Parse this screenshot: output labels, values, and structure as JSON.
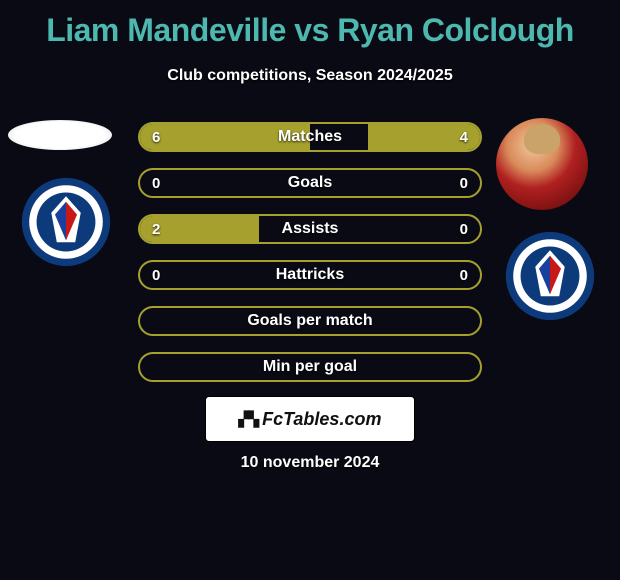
{
  "colors": {
    "background": "#0a0a14",
    "accent_teal": "#4db8b0",
    "bar_border": "#a6a12e",
    "bar_fill": "#a6a12e",
    "text": "#ffffff",
    "crest_outer": "#0d3a7a",
    "crest_white": "#ffffff",
    "crest_red": "#c81818",
    "crest_blue": "#1a3f9c"
  },
  "title": {
    "player1": "Liam Mandeville",
    "vs": "vs",
    "player2": "Ryan Colclough",
    "fontsize": 32
  },
  "subtitle": "Club competitions, Season 2024/2025",
  "bars": [
    {
      "label": "Matches",
      "left_val": "6",
      "right_val": "4",
      "left_pct": 50,
      "right_pct": 33
    },
    {
      "label": "Goals",
      "left_val": "0",
      "right_val": "0",
      "left_pct": 0,
      "right_pct": 0
    },
    {
      "label": "Assists",
      "left_val": "2",
      "right_val": "0",
      "left_pct": 35,
      "right_pct": 0
    },
    {
      "label": "Hattricks",
      "left_val": "0",
      "right_val": "0",
      "left_pct": 0,
      "right_pct": 0
    },
    {
      "label": "Goals per match",
      "left_val": "",
      "right_val": "",
      "left_pct": 0,
      "right_pct": 0
    },
    {
      "label": "Min per goal",
      "left_val": "",
      "right_val": "",
      "left_pct": 0,
      "right_pct": 0
    }
  ],
  "bar_style": {
    "height": 30,
    "gap": 16,
    "border_radius": 16,
    "border_width": 2,
    "label_fontsize": 16,
    "value_fontsize": 15
  },
  "footer": {
    "site": "FcTables.com",
    "date": "10 november 2024"
  }
}
